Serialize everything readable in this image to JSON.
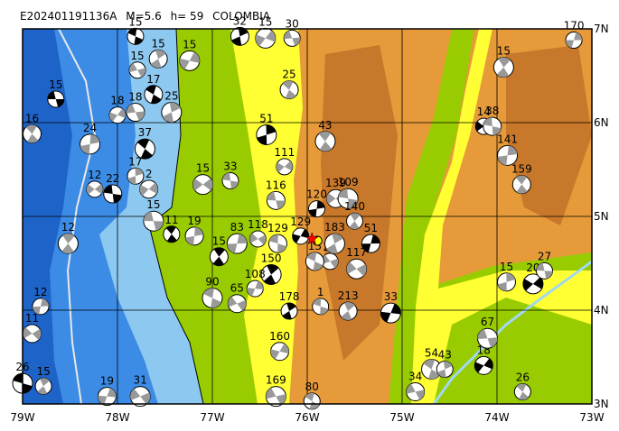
{
  "map": {
    "title": {
      "event": "E202401191136A",
      "magnitude": "M=5.6",
      "depth": "h= 59",
      "region": "COLOMBIA"
    },
    "lonlim": [
      -79,
      -73
    ],
    "latlim": [
      3,
      7
    ],
    "lonticks": [
      {
        "value": -79,
        "label": "79W"
      },
      {
        "value": -78,
        "label": "78W"
      },
      {
        "value": -77,
        "label": "77W"
      },
      {
        "value": -76,
        "label": "76W"
      },
      {
        "value": -75,
        "label": "75W"
      },
      {
        "value": -74,
        "label": "74W"
      },
      {
        "value": -73,
        "label": "73W"
      }
    ],
    "latticks": [
      {
        "value": 3,
        "label": "3N"
      },
      {
        "value": 4,
        "label": "4N"
      },
      {
        "value": 5,
        "label": "5N"
      },
      {
        "value": 6,
        "label": "6N"
      },
      {
        "value": 7,
        "label": "7N"
      }
    ],
    "main_event": {
      "lon": -75.95,
      "lat": 4.76
    },
    "events": [
      {
        "lon": -78.65,
        "lat": 6.25,
        "depth": 15
      },
      {
        "lon": -78.9,
        "lat": 5.88,
        "depth": 16
      },
      {
        "lon": -78.29,
        "lat": 5.77,
        "depth": 24
      },
      {
        "lon": -78.24,
        "lat": 5.29,
        "depth": 12
      },
      {
        "lon": -78.05,
        "lat": 5.24,
        "depth": 22
      },
      {
        "lon": -78.52,
        "lat": 4.71,
        "depth": 12
      },
      {
        "lon": -78.81,
        "lat": 4.04,
        "depth": 12
      },
      {
        "lon": -78.9,
        "lat": 3.75,
        "depth": 11
      },
      {
        "lon": -79.0,
        "lat": 3.22,
        "depth": 26
      },
      {
        "lon": -78.78,
        "lat": 3.19,
        "depth": 15
      },
      {
        "lon": -78.11,
        "lat": 3.08,
        "depth": 19
      },
      {
        "lon": -77.76,
        "lat": 3.08,
        "depth": 31
      },
      {
        "lon": -77.81,
        "lat": 6.92,
        "depth": 15
      },
      {
        "lon": -77.57,
        "lat": 6.68,
        "depth": 15
      },
      {
        "lon": -77.24,
        "lat": 6.66,
        "depth": 15
      },
      {
        "lon": -77.79,
        "lat": 6.56,
        "depth": 15
      },
      {
        "lon": -77.62,
        "lat": 6.3,
        "depth": 17
      },
      {
        "lon": -77.43,
        "lat": 6.11,
        "depth": 25
      },
      {
        "lon": -78.0,
        "lat": 6.08,
        "depth": 18
      },
      {
        "lon": -77.81,
        "lat": 6.11,
        "depth": 18
      },
      {
        "lon": -77.71,
        "lat": 5.72,
        "depth": 37
      },
      {
        "lon": -77.81,
        "lat": 5.43,
        "depth": 17
      },
      {
        "lon": -77.67,
        "lat": 5.29,
        "depth": 2
      },
      {
        "lon": -77.62,
        "lat": 4.95,
        "depth": 15
      },
      {
        "lon": -77.43,
        "lat": 4.81,
        "depth": 11
      },
      {
        "lon": -77.19,
        "lat": 4.79,
        "depth": 19
      },
      {
        "lon": -77.1,
        "lat": 5.34,
        "depth": 15
      },
      {
        "lon": -76.81,
        "lat": 5.38,
        "depth": 33
      },
      {
        "lon": -76.93,
        "lat": 4.57,
        "depth": 15
      },
      {
        "lon": -76.74,
        "lat": 4.71,
        "depth": 83
      },
      {
        "lon": -76.52,
        "lat": 4.76,
        "depth": 118
      },
      {
        "lon": -76.31,
        "lat": 4.71,
        "depth": 129
      },
      {
        "lon": -76.38,
        "lat": 4.38,
        "depth": 150
      },
      {
        "lon": -76.55,
        "lat": 4.23,
        "depth": 108
      },
      {
        "lon": -76.74,
        "lat": 4.07,
        "depth": 65
      },
      {
        "lon": -77.0,
        "lat": 4.13,
        "depth": 90
      },
      {
        "lon": -76.19,
        "lat": 3.99,
        "depth": 178
      },
      {
        "lon": -76.29,
        "lat": 3.56,
        "depth": 160
      },
      {
        "lon": -76.33,
        "lat": 3.08,
        "depth": 169
      },
      {
        "lon": -75.95,
        "lat": 3.03,
        "depth": 80
      },
      {
        "lon": -76.71,
        "lat": 6.92,
        "depth": 32
      },
      {
        "lon": -76.44,
        "lat": 6.9,
        "depth": 15
      },
      {
        "lon": -76.16,
        "lat": 6.9,
        "depth": 30
      },
      {
        "lon": -76.19,
        "lat": 6.35,
        "depth": 25
      },
      {
        "lon": -76.43,
        "lat": 5.87,
        "depth": 51
      },
      {
        "lon": -76.24,
        "lat": 5.53,
        "depth": 111
      },
      {
        "lon": -76.33,
        "lat": 5.17,
        "depth": 116
      },
      {
        "lon": -75.81,
        "lat": 5.8,
        "depth": 43
      },
      {
        "lon": -75.9,
        "lat": 5.08,
        "depth": 120
      },
      {
        "lon": -75.7,
        "lat": 5.19,
        "depth": 139
      },
      {
        "lon": -75.57,
        "lat": 5.19,
        "depth": 109
      },
      {
        "lon": -75.5,
        "lat": 4.95,
        "depth": 140
      },
      {
        "lon": -75.33,
        "lat": 4.71,
        "depth": 51
      },
      {
        "lon": -75.48,
        "lat": 4.44,
        "depth": 117
      },
      {
        "lon": -75.86,
        "lat": 4.04,
        "depth": 1
      },
      {
        "lon": -75.57,
        "lat": 3.99,
        "depth": 213
      },
      {
        "lon": -75.12,
        "lat": 3.97,
        "depth": 33
      },
      {
        "lon": -75.76,
        "lat": 4.52,
        "depth": 24
      },
      {
        "lon": -75.92,
        "lat": 4.52,
        "depth": 13
      },
      {
        "lon": -75.71,
        "lat": 4.71,
        "depth": 183
      },
      {
        "lon": -76.07,
        "lat": 4.79,
        "depth": 129
      },
      {
        "lon": -74.86,
        "lat": 3.13,
        "depth": 34
      },
      {
        "lon": -74.69,
        "lat": 3.37,
        "depth": 54
      },
      {
        "lon": -74.55,
        "lat": 3.37,
        "depth": 43
      },
      {
        "lon": -74.14,
        "lat": 3.41,
        "depth": 18
      },
      {
        "lon": -74.1,
        "lat": 3.7,
        "depth": 67
      },
      {
        "lon": -73.73,
        "lat": 3.13,
        "depth": 26
      },
      {
        "lon": -73.9,
        "lat": 4.3,
        "depth": 15
      },
      {
        "lon": -73.62,
        "lat": 4.28,
        "depth": 20
      },
      {
        "lon": -73.5,
        "lat": 4.42,
        "depth": 27
      },
      {
        "lon": -73.74,
        "lat": 5.34,
        "depth": 159
      },
      {
        "lon": -73.89,
        "lat": 5.65,
        "depth": 141
      },
      {
        "lon": -74.14,
        "lat": 5.96,
        "depth": 14
      },
      {
        "lon": -74.05,
        "lat": 5.96,
        "depth": 38
      },
      {
        "lon": -73.93,
        "lat": 6.59,
        "depth": 15
      },
      {
        "lon": -73.19,
        "lat": 6.88,
        "depth": 170
      }
    ]
  }
}
